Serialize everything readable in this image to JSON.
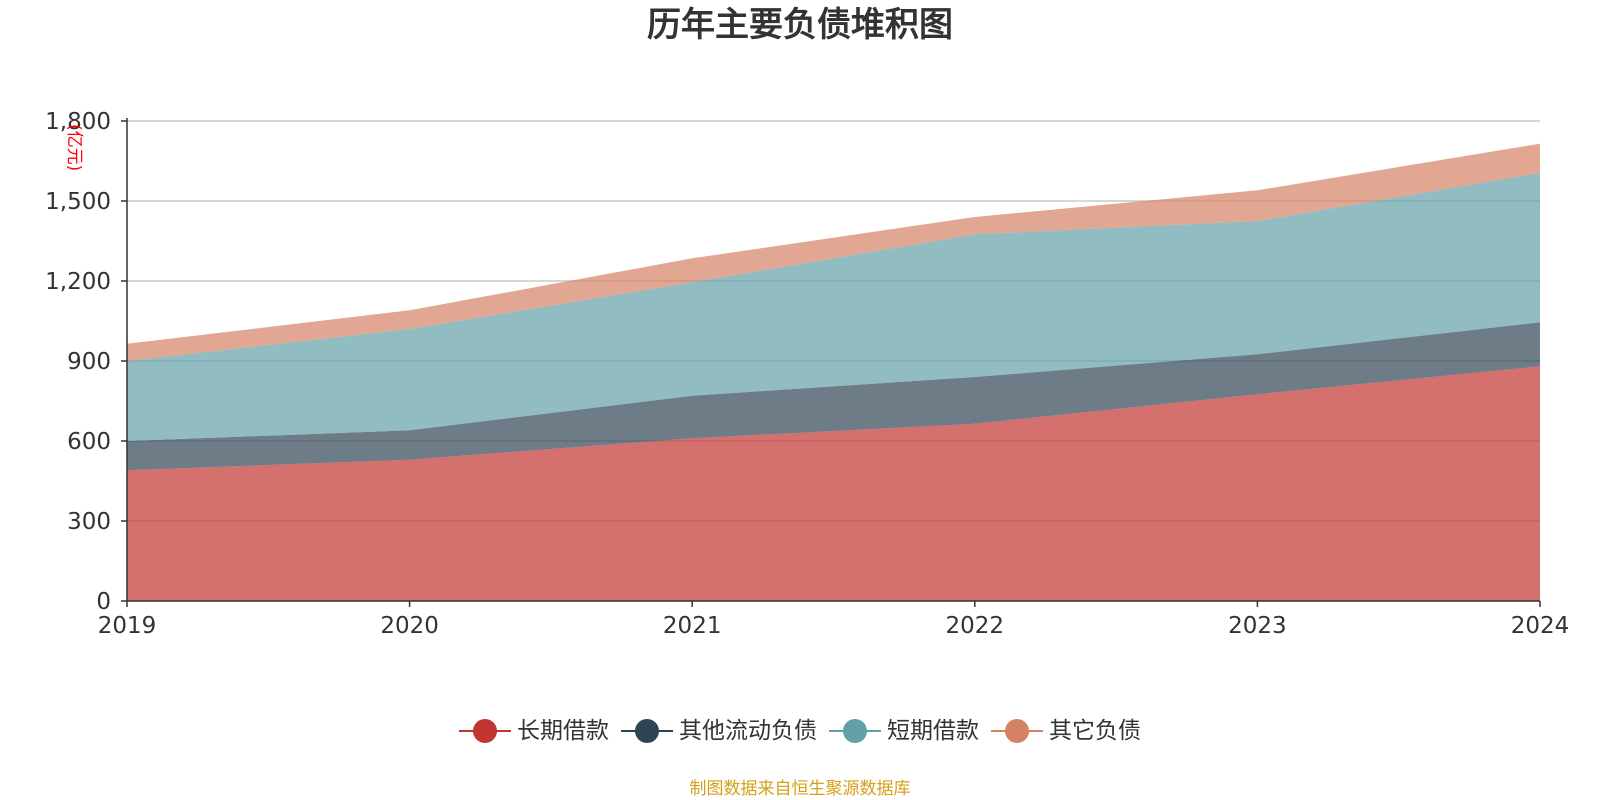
{
  "title": "历年主要负债堆积图",
  "unit_label": "(亿元)",
  "source_note": "制图数据来自恒生聚源数据库",
  "legend": [
    {
      "label": "长期借款",
      "color": "#c23531"
    },
    {
      "label": "其他流动负债",
      "color": "#2f4554"
    },
    {
      "label": "短期借款",
      "color": "#61a0a8"
    },
    {
      "label": "其它负债",
      "color": "#d48265"
    }
  ],
  "chart_data": {
    "type": "area",
    "stacked": true,
    "title": "历年主要负债堆积图",
    "ylabel": "(亿元)",
    "xlabel": "",
    "x": [
      "2019",
      "2020",
      "2021",
      "2022",
      "2023",
      "2024"
    ],
    "ylim": [
      0,
      1800
    ],
    "yticks": [
      0,
      300,
      600,
      900,
      1200,
      1500,
      1800
    ],
    "ytick_labels": [
      "0",
      "300",
      "600",
      "900",
      "1,200",
      "1,500",
      "1,800"
    ],
    "grid": true,
    "legend_position": "bottom",
    "series": [
      {
        "name": "长期借款",
        "color": "#c23531",
        "values": [
          490,
          530,
          610,
          665,
          775,
          880
        ]
      },
      {
        "name": "其他流动负债",
        "color": "#2f4554",
        "values": [
          110,
          110,
          160,
          175,
          150,
          165
        ]
      },
      {
        "name": "短期借款",
        "color": "#61a0a8",
        "values": [
          300,
          380,
          425,
          535,
          500,
          560
        ]
      },
      {
        "name": "其它负债",
        "color": "#d48265",
        "values": [
          65,
          70,
          90,
          65,
          115,
          110
        ]
      }
    ]
  }
}
